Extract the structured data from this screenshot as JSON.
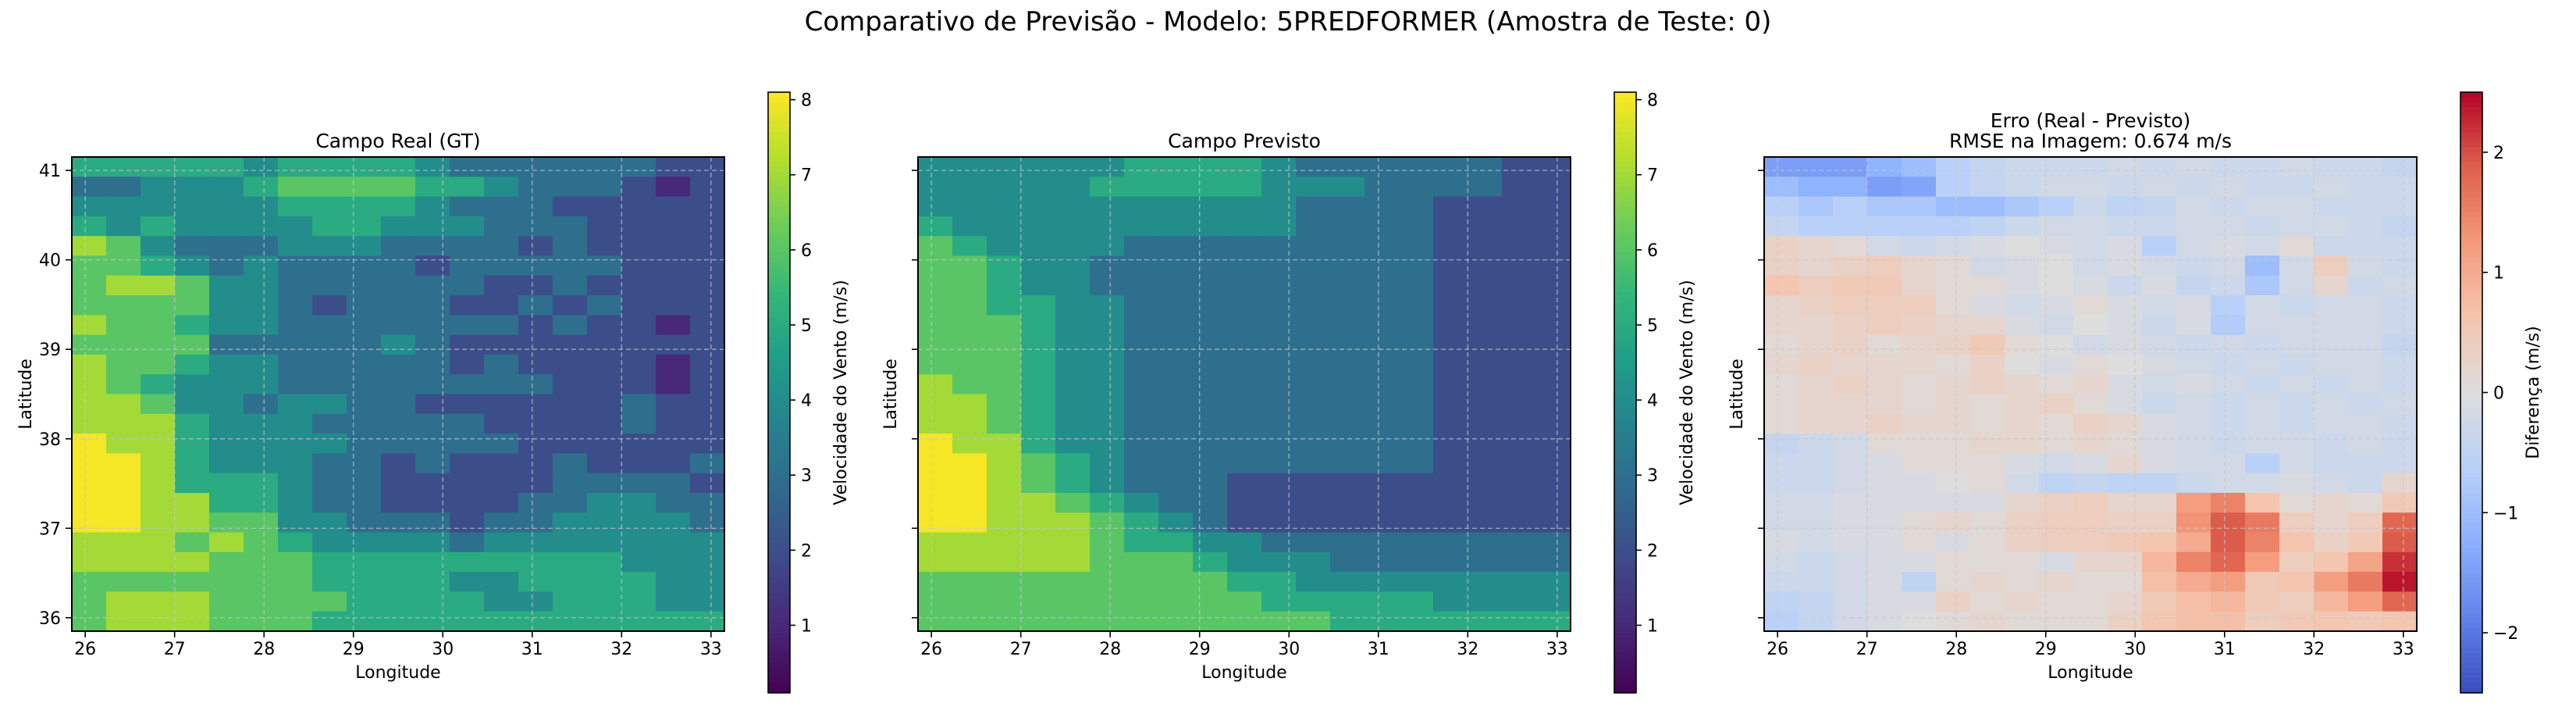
{
  "figure": {
    "suptitle": "Comparativo de Previsão - Modelo: 5PREDFORMER (Amostra de Teste: 0)"
  },
  "colors": {
    "grid": "#c8c8c8",
    "frame": "#000000"
  },
  "chart_data": [
    {
      "type": "heatmap",
      "title": "Campo Real (GT)",
      "xlabel": "Longitude",
      "ylabel": "Latitude",
      "xlim": [
        25.85,
        33.15
      ],
      "ylim": [
        35.85,
        41.15
      ],
      "xticks": [
        "26",
        "27",
        "28",
        "29",
        "30",
        "31",
        "32",
        "33"
      ],
      "yticks": [
        "36",
        "37",
        "38",
        "39",
        "40",
        "41"
      ],
      "grid": true,
      "colormap": "viridis",
      "colorbar": {
        "label": "Velocidade do Vento (m/s)",
        "range": [
          0.1,
          8.1
        ],
        "ticks": [
          "1",
          "2",
          "3",
          "4",
          "5",
          "6",
          "7",
          "8"
        ]
      },
      "rows_top_to_bottom": [
        "5555545555433333322",
        "3344456666554333212",
        "4444445555433322222",
        "5454444554443332222",
        "7643334443333232222",
        "6654343333233333222",
        "6776443333332232222",
        "6666443233322323222",
        "7665443333333232212",
        "6666333334322222222",
        "7665443333323222212",
        "7654443333333322212",
        "7764434433222222322",
        "7775444333332222322",
        "8775444433333222222",
        "8875444332322232223",
        "8875554332222233332",
        "8877554332222334433",
        "8877664433323344443",
        "7776765444434444444",
        "7777666555555555444",
        "6666666555544555544",
        "6777666655554455544",
        "6777666555555555555"
      ]
    },
    {
      "type": "heatmap",
      "title": "Campo Previsto",
      "xlabel": "Longitude",
      "ylabel": "Latitude",
      "xlim": [
        25.85,
        33.15
      ],
      "ylim": [
        35.85,
        41.15
      ],
      "xticks": [
        "26",
        "27",
        "28",
        "29",
        "30",
        "31",
        "32",
        "33"
      ],
      "yticks": [
        "36",
        "37",
        "38",
        "39",
        "40",
        "41"
      ],
      "grid": true,
      "colormap": "viridis",
      "colorbar": {
        "label": "Velocidade do Vento (m/s)",
        "range": [
          0.1,
          8.1
        ],
        "ticks": [
          "1",
          "2",
          "3",
          "4",
          "5",
          "6",
          "7",
          "8"
        ]
      },
      "rows_top_to_bottom": [
        "4444445555433333322",
        "4444455555444333322",
        "4444444444433332222",
        "5444444444433332222",
        "6544443333333332222",
        "6654433333333332222",
        "6654433333333332222",
        "6655443333333332222",
        "6665443333333332222",
        "6665443333333332222",
        "6665443333333332222",
        "7665443333333332222",
        "7765443333333332222",
        "7765443333333332222",
        "8775443333333332222",
        "8876543333333332222",
        "8876543332222222222",
        "8877654332222222222",
        "8877765432222222222",
        "7777765544333333333",
        "7777766654443333333",
        "6666666665544444444",
        "6666666666555554444",
        "6666666666665555555"
      ]
    },
    {
      "type": "heatmap",
      "title": "Erro (Real - Previsto)",
      "subtitle": "RMSE na Imagem: 0.674 m/s",
      "xlabel": "Longitude",
      "ylabel": "Latitude",
      "xlim": [
        25.85,
        33.15
      ],
      "ylim": [
        35.85,
        41.15
      ],
      "xticks": [
        "26",
        "27",
        "28",
        "29",
        "30",
        "31",
        "32",
        "33"
      ],
      "yticks": [
        "36",
        "37",
        "38",
        "39",
        "40",
        "41"
      ],
      "grid": true,
      "colormap": "coolwarm",
      "colorbar": {
        "label": "Diferença (m/s)",
        "range": [
          -2.5,
          2.5
        ],
        "ticks": [
          "−2",
          "−1",
          "0",
          "1",
          "2"
        ]
      },
      "rows_top_to_bottom": [
        "-1.5,-1.5,-1.5,-1.2,-1,-0.6,-0.4,-0.3,-0.3,-0.3,-0.2,-0.3,-0.2,-0.3,-0.3,-0.2,-0.3,-0.3,-0.4",
        "-1,-1.2,-1.2,-1.5,-1.4,-0.6,-0.4,-0.3,-0.2,-0.2,-0.3,-0.2,-0.3,-0.2,-0.3,-0.3,-0.2,-0.3,-0.3",
        "-0.6,-0.8,-0.6,-0.8,-0.8,-1,-1,-0.8,-0.6,-0.3,-0.5,-0.4,-0.2,-0.3,-0.2,-0.2,-0.3,-0.3,-0.3",
        "-0.4,-0.6,-0.6,-0.6,-0.6,-0.6,-0.5,-0.3,-0.2,-0.2,-0.3,-0.3,-0.2,-0.2,-0.3,-0.2,-0.2,-0.3,-0.4",
        "0.3,0.2,0.1,-0.2,-0.3,-0.2,-0.1,-0,-0.1,-0.2,-0.1,-0.6,-0.2,-0.1,-0.2,0.1,-0.3,-0.3,-0.3",
        "0.3,0.2,0.3,0.4,0.2,0.1,-0.2,-0.1,-0,-0.2,-0.1,-0.2,-0.3,-0.2,-1,-0.2,0.4,-0.2,-0.3",
        "0.6,0.4,0.5,0.5,0.2,0.1,0.1,-0.1,0,-0.1,-0.3,-0.1,-0.4,-0.3,-0.8,-0.2,0.2,-0.3,-0.2",
        "0.2,0.3,0.4,0.4,0.4,0.1,-0.1,-0.2,-0.1,0.1,-0.1,-0.2,-0.1,-0.6,-0.2,-0.3,-0.2,-0.2,-0.3",
        "0.2,0.2,0.3,0.4,0.3,0.2,0.2,-0.1,-0.2,-0,-0.1,-0.3,-0.1,-0.7,-0.2,-0.2,-0.2,-0.2,-0.3",
        "0.1,0.2,0.3,0.1,0.2,0.3,0.5,0.1,0,-0.2,-0.1,-0.2,-0.3,-0.2,-0.3,-0.2,-0.2,-0.2,-0.4",
        "0.2,0.3,0.2,0.2,0.2,0.1,0.3,0,-0.1,0.1,-0,-0.1,-0.2,-0.3,-0.2,-0.3,-0.2,-0.2,-0.3",
        "0.1,0.2,0.3,0.2,0.1,0.2,0.3,0.2,0.1,0.2,-0.1,-0.2,-0.1,-0.2,-0.3,-0.2,-0.3,-0.2,-0.3",
        "0.1,0.2,0.2,0.2,0.1,0.2,0.1,0.2,0.3,0.1,-0.1,-0.3,-0.2,-0.3,-0.2,-0.3,-0.2,-0.3,-0.2",
        "0.1,0.2,0.2,0.3,0.2,0.2,0.1,0.2,0.1,0.3,0.2,-0.1,-0.2,-0.3,-0.2,-0.3,-0.2,-0.2,-0.3",
        "-0.4,-0.3,-0.2,0.1,0.1,0.1,0.2,0.2,0.1,0.2,0.1,-0.1,-0.2,-0.3,-0.2,-0.2,-0.3,-0.2,-0.3",
        "-0.3,-0.3,-0.2,-0.1,0.1,0.1,0.1,-0.1,-0.2,-0.1,0.2,-0.1,-0.2,-0.2,-0.6,-0.2,-0.3,-0.3,-0.3",
        "-0.3,-0.3,-0.2,-0.1,-0.1,0,0.1,-0.2,-0.5,-0.4,-0.5,-0.5,-0.3,-0.2,-0.2,-0.1,-0.2,-0.3,0.2",
        "-0.2,-0.2,-0.1,-0.1,-0.1,-0.1,-0.1,0.2,0.3,0.4,0.2,0.2,1.2,1.5,0.6,0.1,0.2,0.1,0.5",
        "-0.2,-0.2,-0.1,-0.1,0.1,0.2,0.1,0.3,0.4,0.4,0.3,0.3,1.3,1.9,1.6,0.4,0.2,0.4,1.8",
        "-0.1,-0.2,-0.1,-0.1,0.1,-0.1,0.1,0.3,0.4,0.4,0.5,0.6,1.0,1.9,1.5,0.6,0.3,0.5,1.9",
        "-0.2,-0.3,-0.2,-0.1,-0.1,0.1,0.1,0.1,-0.1,0.2,0.2,0.8,1.5,1.8,1.2,0.4,0.6,1.1,2.2",
        "-0.3,-0.3,-0.2,-0.1,-0.5,0.1,0.2,0.1,0.2,0.1,0.1,0.7,1.0,1.2,0.5,0.6,1.2,1.6,2.4",
        "-0.5,-0.4,-0.2,-0.1,-0.1,0.3,0.1,0.2,0.1,0.1,0.2,0.5,0.7,0.8,0.5,0.4,0.8,1.2,1.8",
        "-0.6,-0.4,-0.2,-0.1,0,0.1,0.2,0.1,0.1,0.1,0.3,0.6,0.7,0.7,0.4,0.5,0.6,0.5,0.6"
      ]
    }
  ]
}
